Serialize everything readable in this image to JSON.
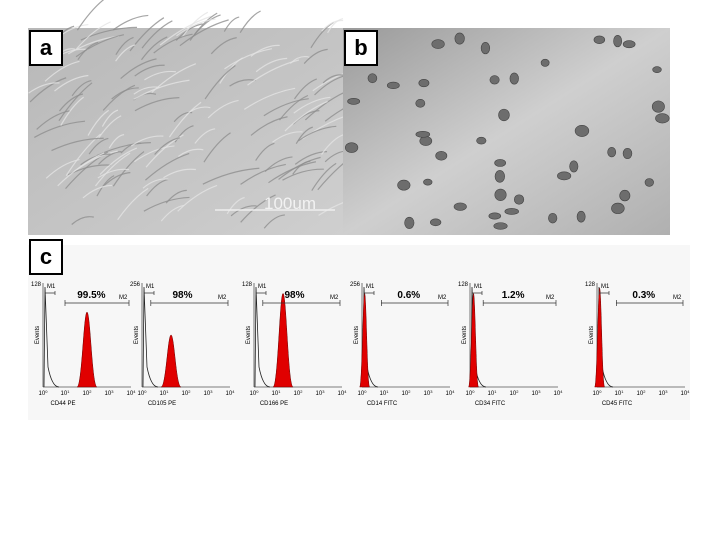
{
  "panels": {
    "a": {
      "label": "a",
      "scale_bar": "100um"
    },
    "b": {
      "label": "b"
    },
    "c": {
      "label": "c",
      "tick_base": "10",
      "tick_exponents": [
        0,
        1,
        2,
        3,
        4
      ],
      "histograms": [
        {
          "ymax": "128",
          "ylabel": "Events",
          "gate1": "M1",
          "gate2": "M2",
          "percent": "99.5%",
          "xlabel": "CD44 PE"
        },
        {
          "ymax": "256",
          "ylabel": "Events",
          "gate1": "M1",
          "gate2": "M2",
          "percent": "98%",
          "xlabel": "CD105 PE"
        },
        {
          "ymax": "128",
          "ylabel": "Events",
          "gate1": "M1",
          "gate2": "M2",
          "percent": "98%",
          "xlabel": "CD166 PE"
        },
        {
          "ymax": "256",
          "ylabel": "Events",
          "gate1": "M1",
          "gate2": "M2",
          "percent": "0.6%",
          "xlabel": "CD14 FITC"
        },
        {
          "ymax": "128",
          "ylabel": "Events",
          "gate1": "M1",
          "gate2": "M2",
          "percent": "1.2%",
          "xlabel": "CD34 FITC"
        },
        {
          "ymax": "128",
          "ylabel": "Events",
          "gate1": "M1",
          "gate2": "M2",
          "percent": "0.3%",
          "xlabel": "CD45 FITC"
        }
      ]
    }
  }
}
